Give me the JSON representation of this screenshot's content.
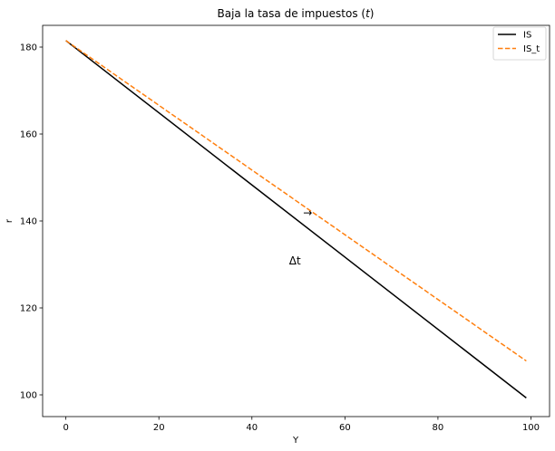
{
  "chart_data": {
    "type": "line",
    "title_prefix": "Baja la tasa de impuestos (",
    "title_var": "t",
    "title_suffix": ")",
    "xlabel": "Y",
    "ylabel": "r",
    "xlim": [
      -5,
      104
    ],
    "ylim": [
      95,
      185
    ],
    "xticks": [
      0,
      20,
      40,
      60,
      80,
      100
    ],
    "yticks": [
      100,
      120,
      140,
      160,
      180
    ],
    "grid": false,
    "legend_position": "top-right",
    "series": [
      {
        "name": "IS",
        "color": "#000000",
        "dash": "solid",
        "x": [
          0,
          99
        ],
        "y": [
          181.5,
          99.3
        ]
      },
      {
        "name": "IS_t",
        "color": "#ff7f0e",
        "dash": "dashed",
        "x": [
          0,
          99
        ],
        "y": [
          181.5,
          107.8
        ]
      }
    ],
    "annotations": [
      {
        "text": "Δt",
        "x": 48,
        "y": 130
      },
      {
        "text": "→",
        "x": 51,
        "y": 141,
        "color": "#666666"
      }
    ]
  }
}
